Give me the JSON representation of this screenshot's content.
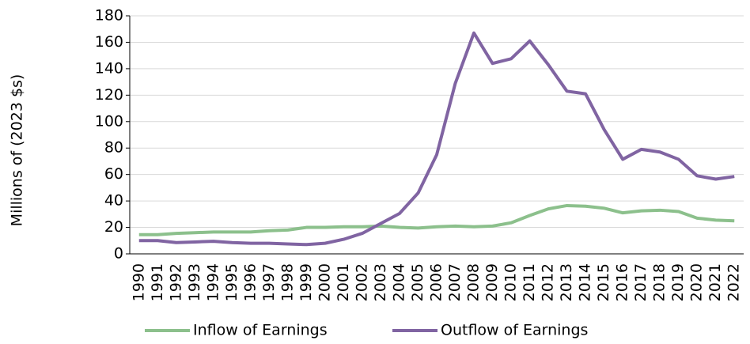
{
  "chart_data": {
    "type": "line",
    "y_label": "Millions of (2023 $s)",
    "categories": [
      "1990",
      "1991",
      "1992",
      "1993",
      "1994",
      "1995",
      "1996",
      "1997",
      "1998",
      "1999",
      "2000",
      "2001",
      "2002",
      "2003",
      "2004",
      "2005",
      "2006",
      "2007",
      "2008",
      "2009",
      "2010",
      "2011",
      "2012",
      "2013",
      "2014",
      "2015",
      "2016",
      "2017",
      "2018",
      "2019",
      "2020",
      "2021",
      "2022"
    ],
    "series": [
      {
        "name": "Inflow of Earnings",
        "color": "#8cc08c",
        "values": [
          14.5,
          14.5,
          15.5,
          16,
          16.5,
          16.5,
          16.5,
          17.5,
          18,
          20,
          20,
          20.5,
          20.5,
          21,
          20,
          19.5,
          20.5,
          21,
          20.5,
          21,
          23.5,
          29,
          34,
          36.5,
          36,
          34.5,
          31,
          32.5,
          33,
          32,
          27,
          25.5,
          25
        ]
      },
      {
        "name": "Outflow of Earnings",
        "color": "#8064a2",
        "values": [
          10,
          10,
          8.5,
          9,
          9.5,
          8.5,
          8,
          8,
          7.5,
          7,
          8,
          11,
          15.5,
          23,
          30.5,
          46,
          75,
          129,
          167,
          144,
          147.5,
          161,
          143,
          123,
          121,
          94,
          71.5,
          79,
          77,
          71.5,
          59,
          56.5,
          58.5
        ]
      }
    ],
    "ylim": [
      0,
      180
    ],
    "yticks": [
      0,
      20,
      40,
      60,
      80,
      100,
      120,
      140,
      160,
      180
    ],
    "grid": true,
    "legend": "bottom"
  }
}
